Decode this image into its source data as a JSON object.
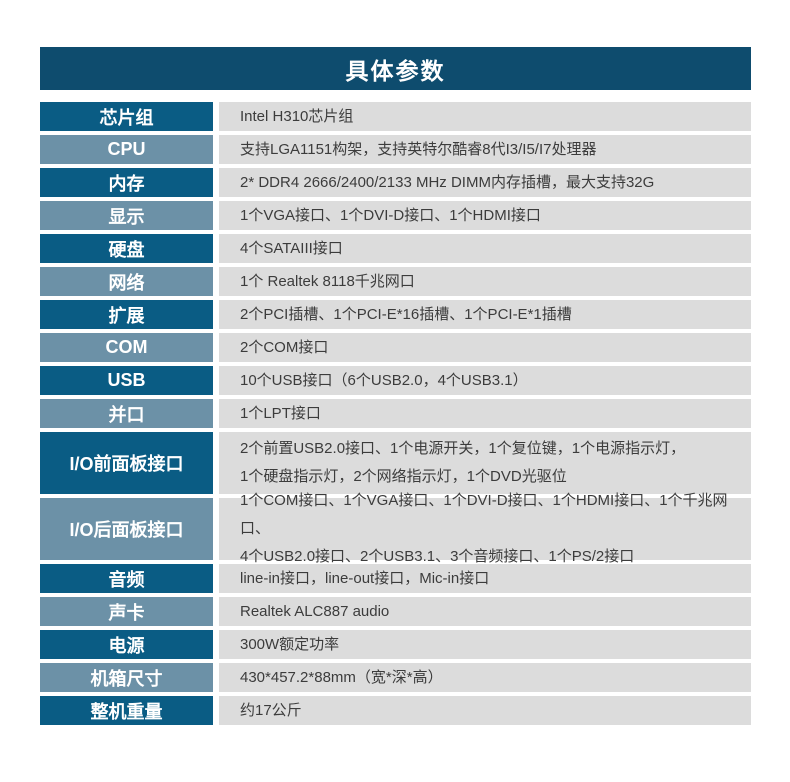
{
  "colors": {
    "header_bg": "#0e4c6e",
    "row_dark": "#0a5c84",
    "row_light": "#6c91a7",
    "value_bg": "#dcdcdc"
  },
  "header": {
    "title": "具体参数"
  },
  "rows": [
    {
      "label": "芯片组",
      "lines": [
        "Intel H310芯片组"
      ]
    },
    {
      "label": "CPU",
      "lines": [
        "支持LGA1151构架，支持英特尔酷睿8代I3/I5/I7处理器"
      ]
    },
    {
      "label": "内存",
      "lines": [
        "2* DDR4 2666/2400/2133 MHz DIMM内存插槽，最大支持32G"
      ]
    },
    {
      "label": "显示",
      "lines": [
        "1个VGA接口、1个DVI-D接口、1个HDMI接口"
      ]
    },
    {
      "label": "硬盘",
      "lines": [
        "4个SATAIII接口"
      ]
    },
    {
      "label": "网络",
      "lines": [
        "1个 Realtek 8118千兆网口"
      ]
    },
    {
      "label": "扩展",
      "lines": [
        "2个PCI插槽、1个PCI-E*16插槽、1个PCI-E*1插槽"
      ]
    },
    {
      "label": "COM",
      "lines": [
        "2个COM接口"
      ]
    },
    {
      "label": "USB",
      "lines": [
        "10个USB接口（6个USB2.0，4个USB3.1）"
      ]
    },
    {
      "label": "并口",
      "lines": [
        "1个LPT接口"
      ]
    },
    {
      "label": "I/O前面板接口",
      "lines": [
        "2个前置USB2.0接口、1个电源开关，1个复位键，1个电源指示灯，",
        "1个硬盘指示灯，2个网络指示灯，1个DVD光驱位"
      ]
    },
    {
      "label": "I/O后面板接口",
      "lines": [
        "1个COM接口、1个VGA接口、1个DVI-D接口、1个HDMI接口、1个千兆网口、",
        "4个USB2.0接口、2个USB3.1、3个音频接口、1个PS/2接口"
      ]
    },
    {
      "label": "音频",
      "lines": [
        "line-in接口，line-out接口，Mic-in接口"
      ]
    },
    {
      "label": "声卡",
      "lines": [
        "Realtek  ALC887 audio"
      ]
    },
    {
      "label": "电源",
      "lines": [
        "300W额定功率"
      ]
    },
    {
      "label": "机箱尺寸",
      "lines": [
        "430*457.2*88mm（宽*深*高）"
      ]
    },
    {
      "label": "整机重量",
      "lines": [
        "约17公斤"
      ]
    }
  ]
}
